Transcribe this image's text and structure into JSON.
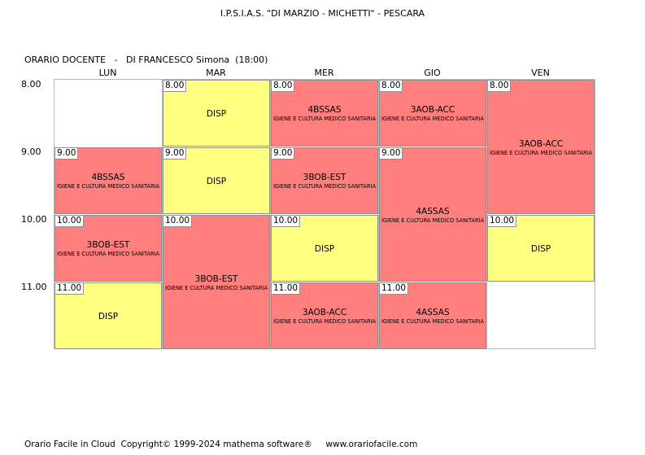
{
  "header": {
    "school": "I.P.S.I.A.S. \"DI MARZIO - MICHETTI\" - PESCARA",
    "teacher_line": "ORARIO DOCENTE   -   DI FRANCESCO Simona  (18:00)"
  },
  "days": [
    "LUN",
    "MAR",
    "MER",
    "GIO",
    "VEN"
  ],
  "hours": [
    "8.00",
    "9.00",
    "10.00",
    "11.00"
  ],
  "lessons": [
    {
      "day": 1,
      "start": 0,
      "span": 1,
      "time": "8.00",
      "label": "DISP",
      "subject": "",
      "color": "#ffff80"
    },
    {
      "day": 2,
      "start": 0,
      "span": 1,
      "time": "8.00",
      "label": "4BSSAS",
      "subject": "IGIENE E CULTURA MEDICO SANITARIA",
      "color": "#ff7f7f"
    },
    {
      "day": 3,
      "start": 0,
      "span": 1,
      "time": "8.00",
      "label": "3AOB-ACC",
      "subject": "IGIENE E CULTURA MEDICO SANITARIA",
      "color": "#ff7f7f"
    },
    {
      "day": 4,
      "start": 0,
      "span": 2,
      "time": "8.00",
      "label": "3AOB-ACC",
      "subject": "IGIENE E CULTURA MEDICO SANITARIA",
      "color": "#ff7f7f"
    },
    {
      "day": 0,
      "start": 1,
      "span": 1,
      "time": "9.00",
      "label": "4BSSAS",
      "subject": "IGIENE E CULTURA MEDICO SANITARIA",
      "color": "#ff7f7f"
    },
    {
      "day": 1,
      "start": 1,
      "span": 1,
      "time": "9.00",
      "label": "DISP",
      "subject": "",
      "color": "#ffff80"
    },
    {
      "day": 2,
      "start": 1,
      "span": 1,
      "time": "9.00",
      "label": "3BOB-EST",
      "subject": "IGIENE E CULTURA MEDICO SANITARIA",
      "color": "#ff7f7f"
    },
    {
      "day": 3,
      "start": 1,
      "span": 2,
      "time": "9.00",
      "label": "4ASSAS",
      "subject": "IGIENE E CULTURA MEDICO SANITARIA",
      "color": "#ff7f7f"
    },
    {
      "day": 0,
      "start": 2,
      "span": 1,
      "time": "10.00",
      "label": "3BOB-EST",
      "subject": "IGIENE E CULTURA MEDICO SANITARIA",
      "color": "#ff7f7f"
    },
    {
      "day": 1,
      "start": 2,
      "span": 2,
      "time": "10.00",
      "label": "3BOB-EST",
      "subject": "IGIENE E CULTURA MEDICO SANITARIA",
      "color": "#ff7f7f"
    },
    {
      "day": 2,
      "start": 2,
      "span": 1,
      "time": "10.00",
      "label": "DISP",
      "subject": "",
      "color": "#ffff80"
    },
    {
      "day": 4,
      "start": 2,
      "span": 1,
      "time": "10.00",
      "label": "DISP",
      "subject": "",
      "color": "#ffff80"
    },
    {
      "day": 0,
      "start": 3,
      "span": 1,
      "time": "11.00",
      "label": "DISP",
      "subject": "",
      "color": "#ffff80"
    },
    {
      "day": 2,
      "start": 3,
      "span": 1,
      "time": "11.00",
      "label": "3AOB-ACC",
      "subject": "IGIENE E CULTURA MEDICO SANITARIA",
      "color": "#ff7f7f"
    },
    {
      "day": 3,
      "start": 3,
      "span": 1,
      "time": "11.00",
      "label": "4ASSAS",
      "subject": "IGIENE E CULTURA MEDICO SANITARIA",
      "color": "#ff7f7f"
    }
  ],
  "footer": {
    "text": "Orario Facile in Cloud  Copyright© 1999-2024 mathema software®     www.orariofacile.com"
  }
}
